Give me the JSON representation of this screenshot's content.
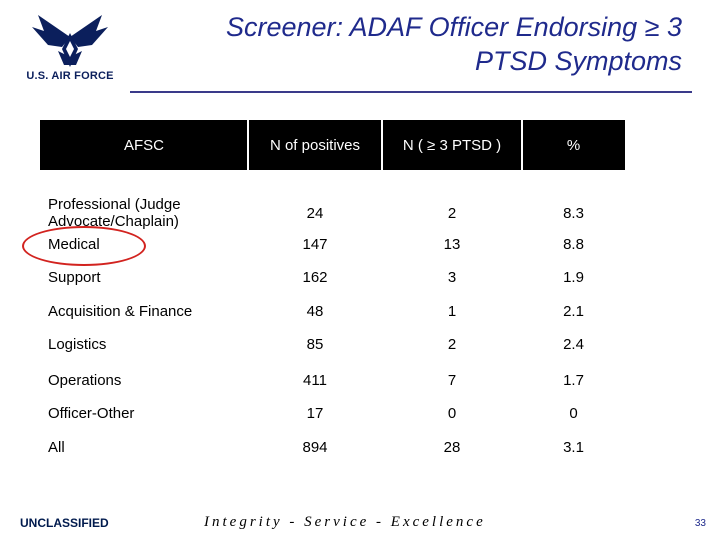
{
  "header": {
    "logo_icon": "air-force-wings-icon",
    "logo_text": "U.S. AIR FORCE",
    "title_line1": "Screener: ADAF Officer Endorsing ≥ 3",
    "title_line2": "PTSD Symptoms"
  },
  "table": {
    "columns": [
      "AFSC",
      "N of positives",
      "N ( ≥ 3 PTSD )",
      "%"
    ],
    "rows": [
      {
        "afsc": "Professional (Judge Advocate/Chaplain)",
        "n_pos": "24",
        "n_ptsd": "2",
        "pct": "8.3"
      },
      {
        "afsc": "Medical",
        "n_pos": "147",
        "n_ptsd": "13",
        "pct": "8.8"
      },
      {
        "afsc": "Support",
        "n_pos": "162",
        "n_ptsd": "3",
        "pct": "1.9"
      },
      {
        "afsc": "Acquisition & Finance",
        "n_pos": "48",
        "n_ptsd": "1",
        "pct": "2.1"
      },
      {
        "afsc": "Logistics",
        "n_pos": "85",
        "n_ptsd": "2",
        "pct": "2.4"
      },
      {
        "afsc": "Operations",
        "n_pos": "411",
        "n_ptsd": "7",
        "pct": "1.7"
      },
      {
        "afsc": "Officer-Other",
        "n_pos": "17",
        "n_ptsd": "0",
        "pct": "0"
      },
      {
        "afsc": "All",
        "n_pos": "894",
        "n_ptsd": "28",
        "pct": "3.1"
      }
    ],
    "highlight_color": "#d2231f"
  },
  "footer": {
    "classification": "UNCLASSIFIED",
    "motto": "Integrity - Service - Excellence",
    "page_number": "33"
  }
}
